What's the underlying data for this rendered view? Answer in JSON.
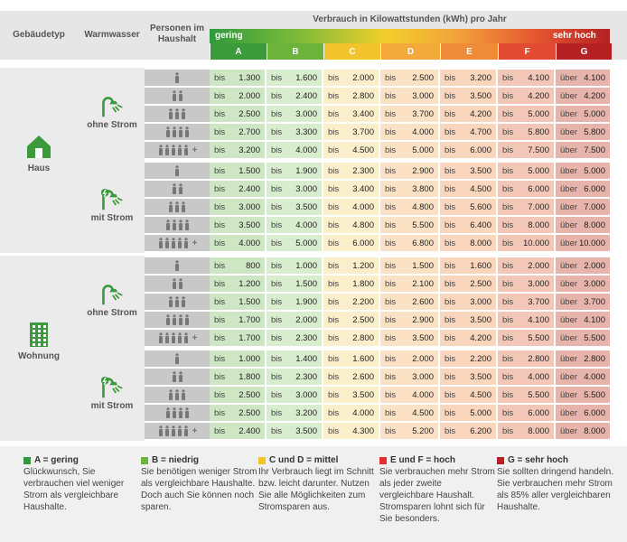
{
  "header": {
    "col_building": "Gebäudetyp",
    "col_water": "Warmwasser",
    "col_persons": "Personen im Haushalt",
    "title": "Verbrauch in Kilowattstunden (kWh) pro Jahr",
    "low": "gering",
    "high": "sehr hoch"
  },
  "colors": {
    "A": "#cfe6c4",
    "B": "#d8ecce",
    "C": "#fbeecb",
    "D": "#fbe2c4",
    "E": "#fad6bd",
    "F": "#f3c7b7",
    "G": "#e6b4aa",
    "A_hdr": "#3a9a3c",
    "B_hdr": "#6bb33a",
    "C_hdr": "#f2c32d",
    "D_hdr": "#f2a93a",
    "E_hdr": "#ee8c3a",
    "F_hdr": "#e24a31",
    "G_hdr": "#b52123"
  },
  "chart_data": {
    "type": "table",
    "title": "Verbrauch in Kilowattstunden (kWh) pro Jahr",
    "classes": [
      "A",
      "B",
      "C",
      "D",
      "E",
      "F",
      "G"
    ],
    "prefix": [
      "bis",
      "bis",
      "bis",
      "bis",
      "bis",
      "bis",
      "über"
    ],
    "sections": [
      {
        "building": "Haus",
        "groups": [
          {
            "water": "ohne Strom",
            "rows": [
              {
                "persons": "1",
                "values": [
                  "1.300",
                  "1.600",
                  "2.000",
                  "2.500",
                  "3.200",
                  "4.100",
                  "4.100"
                ]
              },
              {
                "persons": "2",
                "values": [
                  "2.000",
                  "2.400",
                  "2.800",
                  "3.000",
                  "3.500",
                  "4.200",
                  "4.200"
                ]
              },
              {
                "persons": "3",
                "values": [
                  "2.500",
                  "3.000",
                  "3.400",
                  "3.700",
                  "4.200",
                  "5.000",
                  "5.000"
                ]
              },
              {
                "persons": "4",
                "values": [
                  "2.700",
                  "3.300",
                  "3.700",
                  "4.000",
                  "4.700",
                  "5.800",
                  "5.800"
                ]
              },
              {
                "persons": "5+",
                "values": [
                  "3.200",
                  "4.000",
                  "4.500",
                  "5.000",
                  "6.000",
                  "7.500",
                  "7.500"
                ]
              }
            ]
          },
          {
            "water": "mit Strom",
            "rows": [
              {
                "persons": "1",
                "values": [
                  "1.500",
                  "1.900",
                  "2.300",
                  "2.900",
                  "3.500",
                  "5.000",
                  "5.000"
                ]
              },
              {
                "persons": "2",
                "values": [
                  "2.400",
                  "3.000",
                  "3.400",
                  "3.800",
                  "4.500",
                  "6.000",
                  "6.000"
                ]
              },
              {
                "persons": "3",
                "values": [
                  "3.000",
                  "3.500",
                  "4.000",
                  "4.800",
                  "5.600",
                  "7.000",
                  "7.000"
                ]
              },
              {
                "persons": "4",
                "values": [
                  "3.500",
                  "4.000",
                  "4.800",
                  "5.500",
                  "6.400",
                  "8.000",
                  "8.000"
                ]
              },
              {
                "persons": "5+",
                "values": [
                  "4.000",
                  "5.000",
                  "6.000",
                  "6.800",
                  "8.000",
                  "10.000",
                  "10.000"
                ]
              }
            ]
          }
        ]
      },
      {
        "building": "Wohnung",
        "groups": [
          {
            "water": "ohne Strom",
            "rows": [
              {
                "persons": "1",
                "values": [
                  "800",
                  "1.000",
                  "1.200",
                  "1.500",
                  "1.600",
                  "2.000",
                  "2.000"
                ]
              },
              {
                "persons": "2",
                "values": [
                  "1.200",
                  "1.500",
                  "1.800",
                  "2.100",
                  "2.500",
                  "3.000",
                  "3.000"
                ]
              },
              {
                "persons": "3",
                "values": [
                  "1.500",
                  "1.900",
                  "2.200",
                  "2.600",
                  "3.000",
                  "3.700",
                  "3.700"
                ]
              },
              {
                "persons": "4",
                "values": [
                  "1.700",
                  "2.000",
                  "2.500",
                  "2.900",
                  "3.500",
                  "4.100",
                  "4.100"
                ]
              },
              {
                "persons": "5+",
                "values": [
                  "1.700",
                  "2.300",
                  "2.800",
                  "3.500",
                  "4.200",
                  "5.500",
                  "5.500"
                ]
              }
            ]
          },
          {
            "water": "mit Strom",
            "rows": [
              {
                "persons": "1",
                "values": [
                  "1.000",
                  "1.400",
                  "1.600",
                  "2.000",
                  "2.200",
                  "2.800",
                  "2.800"
                ]
              },
              {
                "persons": "2",
                "values": [
                  "1.800",
                  "2.300",
                  "2.600",
                  "3.000",
                  "3.500",
                  "4.000",
                  "4.000"
                ]
              },
              {
                "persons": "3",
                "values": [
                  "2.500",
                  "3.000",
                  "3.500",
                  "4.000",
                  "4.500",
                  "5.500",
                  "5.500"
                ]
              },
              {
                "persons": "4",
                "values": [
                  "2.500",
                  "3.200",
                  "4.000",
                  "4.500",
                  "5.000",
                  "6.000",
                  "6.000"
                ]
              },
              {
                "persons": "5+",
                "values": [
                  "2.400",
                  "3.500",
                  "4.300",
                  "5.200",
                  "6.200",
                  "8.000",
                  "8.000"
                ]
              }
            ]
          }
        ]
      }
    ]
  },
  "legend": [
    {
      "title": "A = gering",
      "text": "Glückwunsch, Sie verbrauchen viel weniger Strom als vergleichbare Haushalte.",
      "color": "#2f9a3c"
    },
    {
      "title": "B = niedrig",
      "text": "Sie benötigen weniger Strom als vergleichbare Haushalte. Doch auch Sie können noch sparen.",
      "color": "#6bb33a"
    },
    {
      "title": "C und D = mittel",
      "text": "Ihr Verbrauch liegt im Schnitt bzw. leicht darunter. Nutzen Sie alle Möglichkeiten zum Stromsparen aus.",
      "color": "#f2c32d"
    },
    {
      "title": "E und F = hoch",
      "text": "Sie verbrauchen mehr Strom als jeder zweite vergleichbare Haushalt. Stromsparen lohnt sich für Sie besonders.",
      "color": "#e4302f"
    },
    {
      "title": "G = sehr hoch",
      "text": "Sie sollten dringend handeln. Sie verbrauchen mehr Strom als 85% aller vergleichbaren Haushalte.",
      "color": "#b52123"
    }
  ],
  "icons": {
    "house": "house-icon",
    "building": "apartment-building-icon",
    "shower": "shower-icon",
    "shower_electric": "electric-shower-icon",
    "person": "person-icon"
  }
}
